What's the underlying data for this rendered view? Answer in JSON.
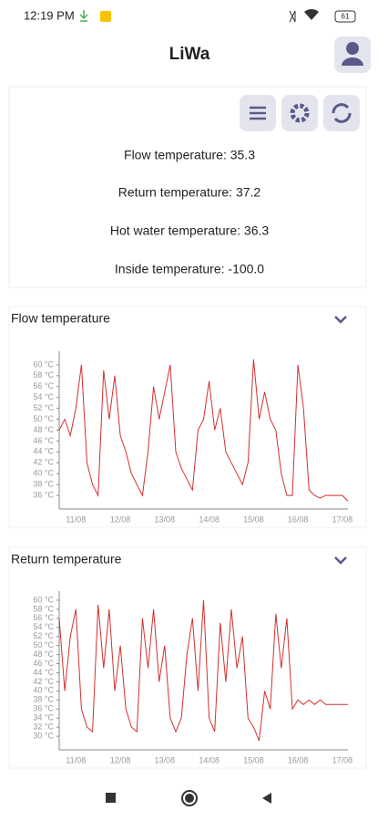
{
  "status": {
    "time": "12:19 PM",
    "battery": "61"
  },
  "header": {
    "title": "LiWa"
  },
  "readings": [
    "Flow temperature: 35.3",
    "Return temperature: 37.2",
    "Hot water temperature: 36.3",
    "Inside temperature: -100.0"
  ],
  "chart_data": [
    {
      "type": "line",
      "title": "Flow temperature",
      "color": "#d32f2f",
      "categories": [
        null,
        null,
        null,
        "11/08",
        null,
        null,
        null,
        null,
        null,
        null,
        null,
        "12/08",
        null,
        null,
        null,
        null,
        null,
        null,
        null,
        "13/08",
        null,
        null,
        null,
        null,
        null,
        null,
        null,
        "14/08",
        null,
        null,
        null,
        null,
        null,
        null,
        null,
        "15/08",
        null,
        null,
        null,
        null,
        null,
        null,
        null,
        "16/08",
        null,
        null,
        null,
        null,
        null,
        null,
        null,
        "17/08",
        null
      ],
      "values": [
        48,
        50,
        47,
        52,
        60,
        42,
        38,
        36,
        59,
        50,
        58,
        47,
        44,
        40,
        38,
        36,
        44,
        56,
        50,
        55,
        60,
        44,
        41,
        39,
        37,
        48,
        50,
        57,
        48,
        52,
        44,
        42,
        40,
        38,
        42,
        61,
        50,
        55,
        50,
        48,
        40,
        36,
        36,
        60,
        52,
        37,
        36,
        35.5,
        36,
        36,
        36,
        36,
        35
      ],
      "ylim": [
        33.5,
        62.5
      ],
      "yticks": [
        {
          "value": 36,
          "label": "36 °C"
        },
        {
          "value": 38,
          "label": "38 °C"
        },
        {
          "value": 40,
          "label": "40 °C"
        },
        {
          "value": 42,
          "label": "42 °C"
        },
        {
          "value": 44,
          "label": "44 °C"
        },
        {
          "value": 46,
          "label": "46 °C"
        },
        {
          "value": 48,
          "label": "48 °C"
        },
        {
          "value": 50,
          "label": "50 °C"
        },
        {
          "value": 52,
          "label": "52 °C"
        },
        {
          "value": 54,
          "label": "54 °C"
        },
        {
          "value": 56,
          "label": "56 °C"
        },
        {
          "value": 58,
          "label": "58 °C"
        },
        {
          "value": 60,
          "label": "60 °C"
        }
      ]
    },
    {
      "type": "line",
      "title": "Return temperature",
      "color": "#d32f2f",
      "categories": [
        null,
        null,
        null,
        "11/08",
        null,
        null,
        null,
        null,
        null,
        null,
        null,
        "12/08",
        null,
        null,
        null,
        null,
        null,
        null,
        null,
        "13/08",
        null,
        null,
        null,
        null,
        null,
        null,
        null,
        "14/08",
        null,
        null,
        null,
        null,
        null,
        null,
        null,
        "15/08",
        null,
        null,
        null,
        null,
        null,
        null,
        null,
        "16/08",
        null,
        null,
        null,
        null,
        null,
        null,
        null,
        "17/08",
        null
      ],
      "values": [
        56,
        40,
        52,
        58,
        36,
        32,
        31,
        59,
        45,
        58,
        40,
        50,
        36,
        32,
        31,
        56,
        45,
        58,
        42,
        50,
        34,
        31,
        34,
        48,
        56,
        40,
        60,
        34,
        31,
        55,
        42,
        58,
        45,
        52,
        34,
        32,
        29,
        40,
        36,
        57,
        45,
        56,
        36,
        38,
        37,
        38,
        37,
        38,
        37,
        37,
        37,
        37,
        37
      ],
      "ylim": [
        27,
        62
      ],
      "yticks": [
        {
          "value": 30,
          "label": "30 °C"
        },
        {
          "value": 32,
          "label": "32 °C"
        },
        {
          "value": 34,
          "label": "34 °C"
        },
        {
          "value": 36,
          "label": "36 °C"
        },
        {
          "value": 38,
          "label": "38 °C"
        },
        {
          "value": 40,
          "label": "40 °C"
        },
        {
          "value": 42,
          "label": "42 °C"
        },
        {
          "value": 44,
          "label": "44 °C"
        },
        {
          "value": 46,
          "label": "46 °C"
        },
        {
          "value": 48,
          "label": "48 °C"
        },
        {
          "value": 50,
          "label": "50 °C"
        },
        {
          "value": 52,
          "label": "52 °C"
        },
        {
          "value": 54,
          "label": "54 °C"
        },
        {
          "value": 56,
          "label": "56 °C"
        },
        {
          "value": 58,
          "label": "58 °C"
        },
        {
          "value": 60,
          "label": "60 °C"
        }
      ]
    }
  ]
}
